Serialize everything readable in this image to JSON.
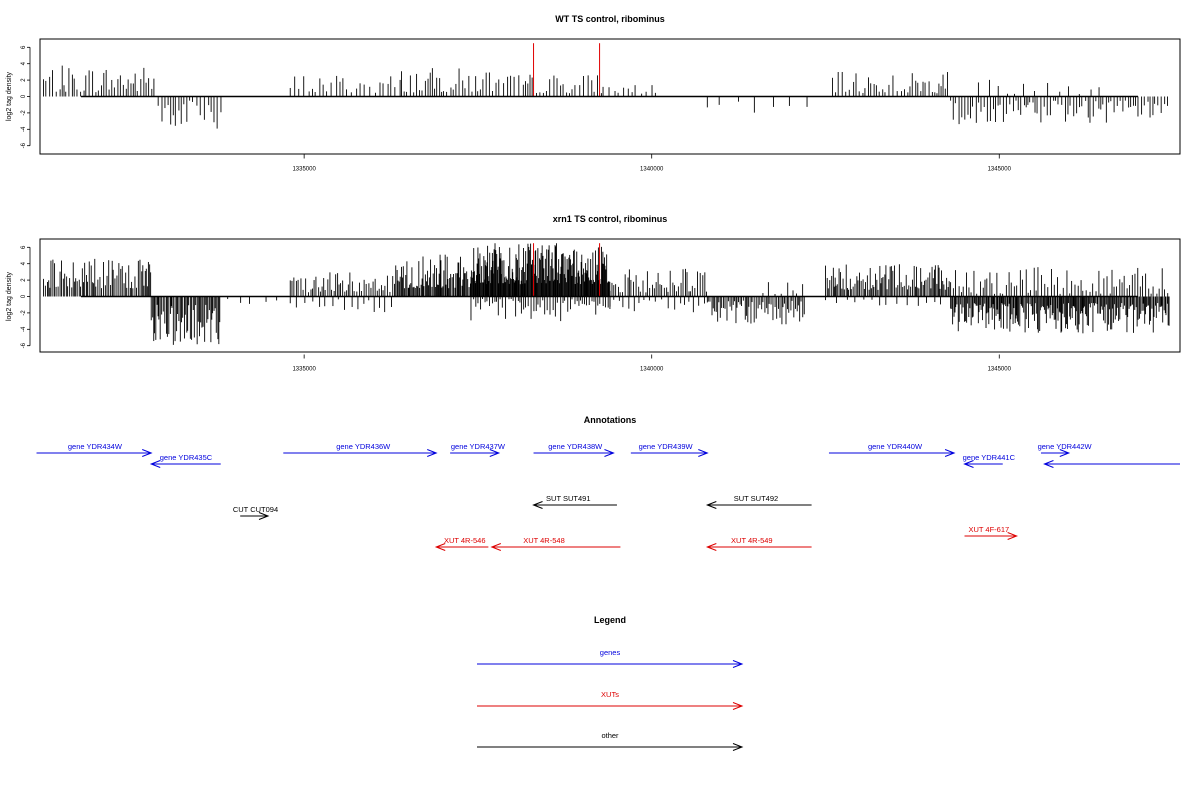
{
  "chart_data": [
    {
      "type": "bar",
      "title": "WT TS control, ribominus",
      "ylabel": "log2 tag density",
      "xlim": [
        1331200,
        1347600
      ],
      "ylim": [
        -6.5,
        6.5
      ],
      "yticks": [
        6,
        4,
        2,
        0,
        -2,
        -4,
        -6
      ],
      "xticks": [
        1335000,
        1340000,
        1345000
      ],
      "xtick_labels": [
        "1335000",
        "1340000",
        "1345000"
      ],
      "grid": false,
      "bar_color": "#000000",
      "highlight_color": "#e00000",
      "highlights": [
        {
          "x": 1338300,
          "y": 6.5
        },
        {
          "x": 1339250,
          "y": 6.5
        }
      ],
      "segments": [
        {
          "from": 1331250,
          "to": 1332850,
          "sign": 1,
          "min": 0.5,
          "max": 3.8,
          "step": 40
        },
        {
          "from": 1332900,
          "to": 1333850,
          "sign": -1,
          "min": 0.5,
          "max": 4.2,
          "step": 45
        },
        {
          "from": 1334800,
          "to": 1336400,
          "sign": 1,
          "min": 0.4,
          "max": 2.8,
          "step": 60
        },
        {
          "from": 1336400,
          "to": 1337800,
          "sign": 1,
          "min": 0.5,
          "max": 3.5,
          "step": 45
        },
        {
          "from": 1337800,
          "to": 1339300,
          "sign": 1,
          "min": 0.4,
          "max": 2.8,
          "step": 50
        },
        {
          "from": 1339300,
          "to": 1340100,
          "sign": 1,
          "min": 0.3,
          "max": 1.6,
          "step": 70
        },
        {
          "from": 1340800,
          "to": 1342300,
          "sign": -1,
          "min": 0.4,
          "max": 2.0,
          "step": 200
        },
        {
          "from": 1342600,
          "to": 1344300,
          "sign": 1,
          "min": 0.4,
          "max": 3.0,
          "step": 45
        },
        {
          "from": 1344300,
          "to": 1347450,
          "sign": -1,
          "min": 0.5,
          "max": 3.5,
          "step": 40
        },
        {
          "from": 1344700,
          "to": 1346500,
          "sign": 1,
          "min": 0.3,
          "max": 2.2,
          "step": 140
        }
      ]
    },
    {
      "type": "bar",
      "title": "xrn1 TS control, ribominus",
      "ylabel": "log2 tag density",
      "xlim": [
        1331200,
        1347600
      ],
      "ylim": [
        -6.5,
        6.5
      ],
      "yticks": [
        6,
        4,
        2,
        0,
        -2,
        -4,
        -6
      ],
      "xticks": [
        1335000,
        1340000,
        1345000
      ],
      "xtick_labels": [
        "1335000",
        "1340000",
        "1345000"
      ],
      "grid": false,
      "bar_color": "#000000",
      "highlight_color": "#e00000",
      "highlights": [
        {
          "x": 1338300,
          "y": 6.5
        },
        {
          "x": 1339250,
          "y": 6.5
        }
      ],
      "segments": [
        {
          "from": 1331250,
          "to": 1332800,
          "sign": 1,
          "min": 1.0,
          "max": 4.6,
          "step": 22
        },
        {
          "from": 1332800,
          "to": 1333800,
          "sign": -1,
          "min": 1.0,
          "max": 6.0,
          "step": 18
        },
        {
          "from": 1333900,
          "to": 1334800,
          "sign": -1,
          "min": 0.3,
          "max": 1.2,
          "step": 200
        },
        {
          "from": 1334800,
          "to": 1336300,
          "sign": 1,
          "min": 0.5,
          "max": 3.2,
          "step": 30
        },
        {
          "from": 1334800,
          "to": 1336300,
          "sign": -1,
          "min": 0.3,
          "max": 2.0,
          "step": 90
        },
        {
          "from": 1336300,
          "to": 1337400,
          "sign": 1,
          "min": 1.0,
          "max": 5.2,
          "step": 16
        },
        {
          "from": 1337400,
          "to": 1339400,
          "sign": 1,
          "min": 1.5,
          "max": 6.5,
          "step": 10
        },
        {
          "from": 1337400,
          "to": 1339400,
          "sign": -1,
          "min": 0.3,
          "max": 3.0,
          "step": 35
        },
        {
          "from": 1339400,
          "to": 1340800,
          "sign": 1,
          "min": 0.5,
          "max": 3.5,
          "step": 30
        },
        {
          "from": 1339400,
          "to": 1340800,
          "sign": -1,
          "min": 0.3,
          "max": 2.0,
          "step": 70
        },
        {
          "from": 1340800,
          "to": 1342200,
          "sign": -1,
          "min": 0.5,
          "max": 3.5,
          "step": 22
        },
        {
          "from": 1341600,
          "to": 1342200,
          "sign": 1,
          "min": 0.3,
          "max": 2.0,
          "step": 80
        },
        {
          "from": 1342500,
          "to": 1344300,
          "sign": 1,
          "min": 0.8,
          "max": 4.0,
          "step": 20
        },
        {
          "from": 1342500,
          "to": 1344300,
          "sign": -1,
          "min": 0.3,
          "max": 1.5,
          "step": 120
        },
        {
          "from": 1344300,
          "to": 1347450,
          "sign": -1,
          "min": 0.8,
          "max": 4.5,
          "step": 15
        },
        {
          "from": 1344300,
          "to": 1347450,
          "sign": 1,
          "min": 0.3,
          "max": 3.6,
          "step": 40
        }
      ]
    }
  ],
  "annotations": {
    "title": "Annotations",
    "features": [
      {
        "label": "gene YDR434W",
        "color": "#0000dd",
        "from": 1331150,
        "to": 1332800,
        "dir": "right",
        "row": 1,
        "label_x": 1331990
      },
      {
        "label": "gene YDR435C",
        "color": "#0000dd",
        "from": 1332800,
        "to": 1333800,
        "dir": "left",
        "row": 2,
        "label_x": 1333300
      },
      {
        "label": "gene YDR436W",
        "color": "#0000dd",
        "from": 1334700,
        "to": 1336900,
        "dir": "right",
        "row": 1,
        "label_x": 1335850
      },
      {
        "label": "gene YDR437W",
        "color": "#0000dd",
        "from": 1337100,
        "to": 1337800,
        "dir": "right",
        "row": 1,
        "label_x": 1337500
      },
      {
        "label": "gene YDR438W",
        "color": "#0000dd",
        "from": 1338300,
        "to": 1339450,
        "dir": "right",
        "row": 1,
        "label_x": 1338900
      },
      {
        "label": "gene YDR439W",
        "color": "#0000dd",
        "from": 1339700,
        "to": 1340800,
        "dir": "right",
        "row": 1,
        "label_x": 1340200
      },
      {
        "label": "gene YDR440W",
        "color": "#0000dd",
        "from": 1342550,
        "to": 1344350,
        "dir": "right",
        "row": 1,
        "label_x": 1343500
      },
      {
        "label": "gene YDR441C",
        "color": "#0000dd",
        "from": 1344500,
        "to": 1345050,
        "dir": "left",
        "row": 2,
        "label_x": 1344850
      },
      {
        "label": "gene YDR442W",
        "color": "#0000dd",
        "from": 1345600,
        "to": 1346000,
        "dir": "right",
        "row": 1,
        "label_x": 1345940
      },
      {
        "label": "",
        "color": "#0000dd",
        "from": 1345650,
        "to": 1347600,
        "dir": "left",
        "row": 2,
        "label_x": 1346600
      },
      {
        "label": "SUT SUT491",
        "color": "#000000",
        "from": 1338300,
        "to": 1339500,
        "dir": "left",
        "row": 3,
        "label_x": 1338800
      },
      {
        "label": "SUT SUT492",
        "color": "#000000",
        "from": 1340800,
        "to": 1342300,
        "dir": "left",
        "row": 3,
        "label_x": 1341500
      },
      {
        "label": "CUT CUT094",
        "color": "#000000",
        "from": 1334080,
        "to": 1334480,
        "dir": "right",
        "row": 4,
        "label_x": 1334300
      },
      {
        "label": "XUT 4R-546",
        "color": "#dd0000",
        "from": 1336900,
        "to": 1337650,
        "dir": "left",
        "row": 5,
        "label_x": 1337310
      },
      {
        "label": "XUT 4R-548",
        "color": "#dd0000",
        "from": 1337700,
        "to": 1339550,
        "dir": "left",
        "row": 5,
        "label_x": 1338450
      },
      {
        "label": "XUT 4R-549",
        "color": "#dd0000",
        "from": 1340800,
        "to": 1342300,
        "dir": "left",
        "row": 5,
        "label_x": 1341440
      },
      {
        "label": "XUT 4F-617",
        "color": "#dd0000",
        "from": 1344500,
        "to": 1345250,
        "dir": "right",
        "row": 6,
        "label_x": 1344850
      }
    ]
  },
  "legend": {
    "title": "Legend",
    "items": [
      {
        "label": "genes",
        "color": "#0000dd"
      },
      {
        "label": "XUTs",
        "color": "#dd0000"
      },
      {
        "label": "other",
        "color": "#000000"
      }
    ]
  }
}
